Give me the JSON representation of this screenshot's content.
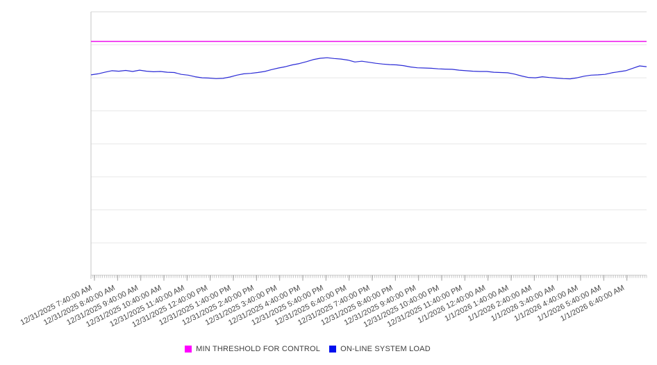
{
  "chart_data": {
    "type": "line",
    "title": "",
    "xlabel": "",
    "ylabel": "",
    "x_labels": [
      "12/31/2025 7:40:00 AM",
      "12/31/2025 8:40:00 AM",
      "12/31/2025 9:40:00 AM",
      "12/31/2025 10:40:00 AM",
      "12/31/2025 11:40:00 AM",
      "12/31/2025 12:40:00 PM",
      "12/31/2025 1:40:00 PM",
      "12/31/2025 2:40:00 PM",
      "12/31/2025 3:40:00 PM",
      "12/31/2025 4:40:00 PM",
      "12/31/2025 5:40:00 PM",
      "12/31/2025 6:40:00 PM",
      "12/31/2025 7:40:00 PM",
      "12/31/2025 8:40:00 PM",
      "12/31/2025 9:40:00 PM",
      "12/31/2025 10:40:00 PM",
      "12/31/2025 11:40:00 PM",
      "1/1/2026 12:40:00 AM",
      "1/1/2026 1:40:00 AM",
      "1/1/2026 2:40:00 AM",
      "1/1/2026 3:40:00 AM",
      "1/1/2026 4:40:00 AM",
      "1/1/2026 5:40:00 AM",
      "1/1/2026 6:40:00 AM"
    ],
    "x_minor_ticks_per_label": 12,
    "ylim": [
      0,
      100
    ],
    "y_axis_tick_labels_visible": false,
    "y_units": "relative scale (no y-axis labels shown in chart)",
    "grid": "horizontal",
    "y_gridline_divisions": 8,
    "legend_position": "bottom-center",
    "series": [
      {
        "name": "MIN THRESHOLD FOR CONTROL",
        "type": "constant-threshold",
        "value": 88.8,
        "line_color": "#ED0EED",
        "swatch_color": "#FF00FF"
      },
      {
        "name": "ON-LINE SYSTEM LOAD",
        "type": "line",
        "line_color": "#2A2AD6",
        "swatch_color": "#0010EE",
        "values": [
          76.1,
          76.5,
          77.1,
          77.7,
          77.5,
          77.8,
          77.4,
          77.9,
          77.5,
          77.3,
          77.4,
          77.1,
          77.0,
          76.3,
          76.0,
          75.4,
          75.0,
          74.9,
          74.7,
          74.8,
          75.3,
          76.0,
          76.5,
          76.7,
          77.0,
          77.4,
          78.1,
          78.7,
          79.2,
          79.9,
          80.4,
          81.1,
          81.9,
          82.4,
          82.6,
          82.3,
          82.1,
          81.7,
          81.0,
          81.3,
          80.9,
          80.5,
          80.2,
          80.0,
          79.9,
          79.6,
          79.1,
          78.8,
          78.7,
          78.6,
          78.4,
          78.3,
          78.2,
          77.9,
          77.7,
          77.5,
          77.4,
          77.4,
          77.1,
          77.0,
          76.9,
          76.4,
          75.7,
          75.1,
          75.0,
          75.4,
          75.1,
          74.9,
          74.7,
          74.6,
          75.0,
          75.6,
          76.0,
          76.1,
          76.3,
          76.9,
          77.3,
          77.7,
          78.6,
          79.5,
          79.2
        ]
      }
    ],
    "axis_colors": {
      "gridline": "#e7e7e7",
      "plot_border": "#d9d9d9",
      "tick": "#b2b2b2",
      "label_text": "#474747"
    }
  }
}
